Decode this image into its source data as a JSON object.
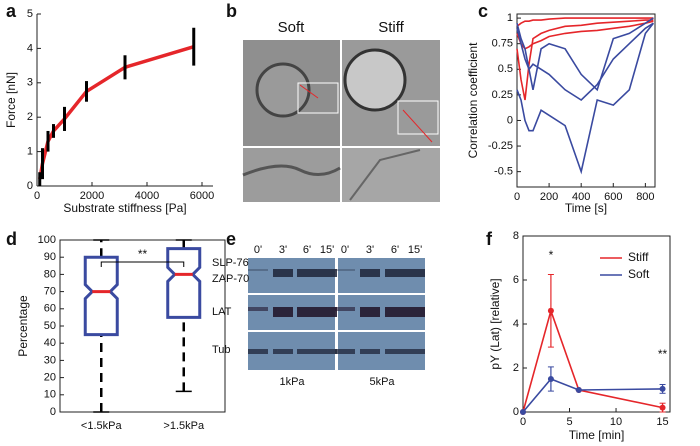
{
  "chart_data": [
    {
      "type": "line",
      "x_label": "Substrate stiffness [Pa]",
      "y_label": "Force [nN]",
      "x": [
        100,
        200,
        400,
        600,
        1000,
        1800,
        3200,
        5700
      ],
      "series": [
        {
          "color": "#e5262a",
          "values": [
            0.2,
            0.65,
            1.3,
            1.6,
            1.95,
            2.75,
            3.45,
            4.05
          ],
          "errors": [
            0.2,
            0.45,
            0.3,
            0.2,
            0.35,
            0.3,
            0.35,
            0.55
          ]
        }
      ],
      "xlim": [
        0,
        6400
      ],
      "ylim": [
        0,
        5
      ],
      "xticks": [
        0,
        2000,
        4000,
        6000
      ],
      "yticks": [
        0,
        1,
        2,
        3,
        4,
        5
      ]
    },
    {
      "type": "line",
      "x_label": "Time [s]",
      "y_label": "Correlation coefficient",
      "x": [
        0,
        25,
        50,
        75,
        100,
        150,
        200,
        300,
        400,
        500,
        600,
        700,
        800,
        850
      ],
      "series": [
        {
          "color": "#e5262a",
          "values": [
            0.92,
            0.95,
            0.97,
            0.97,
            0.98,
            0.98,
            0.99,
            1,
            1,
            1,
            1,
            1,
            1,
            1
          ]
        },
        {
          "color": "#e5262a",
          "values": [
            0.7,
            0.4,
            0.2,
            0.55,
            0.8,
            0.85,
            0.88,
            0.92,
            0.93,
            0.95,
            0.96,
            0.97,
            0.98,
            0.98
          ]
        },
        {
          "color": "#e5262a",
          "values": [
            0.85,
            0.75,
            0.7,
            0.72,
            0.75,
            0.78,
            0.82,
            0.85,
            0.87,
            0.88,
            0.9,
            0.92,
            0.95,
            0.97
          ]
        },
        {
          "color": "#3a4aa0",
          "values": [
            0.9,
            0.75,
            0.6,
            0.5,
            0.55,
            0.5,
            0.45,
            0.3,
            0.2,
            0.35,
            0.6,
            0.75,
            0.9,
            0.95
          ]
        },
        {
          "color": "#3a4aa0",
          "values": [
            0.3,
            0.2,
            0.0,
            -0.1,
            -0.1,
            0.1,
            0.05,
            -0.05,
            -0.5,
            0.2,
            0.15,
            0.3,
            0.85,
            0.95
          ]
        },
        {
          "color": "#3a4aa0",
          "values": [
            0.95,
            0.8,
            0.7,
            0.5,
            0.3,
            0.7,
            0.75,
            0.7,
            0.45,
            0.3,
            0.8,
            0.85,
            0.95,
            1
          ]
        }
      ],
      "xlim": [
        0,
        860
      ],
      "ylim": [
        -0.65,
        1.04
      ],
      "xticks": [
        0,
        200,
        400,
        600,
        800
      ],
      "yticks": [
        -0.5,
        -0.25,
        0,
        0.25,
        0.5,
        0.75,
        1
      ]
    },
    {
      "type": "box",
      "y_label": "Percentage",
      "categories": [
        "<1.5kPa",
        ">1.5kPa"
      ],
      "color": "#3a4aa0",
      "median_color": "#e5262a",
      "stats": [
        {
          "low": 0,
          "q1": 45,
          "median": 70,
          "q3": 90,
          "high": 100
        },
        {
          "low": 12,
          "q1": 55,
          "median": 80,
          "q3": 95,
          "high": 100
        }
      ],
      "annotations": [
        "**"
      ],
      "ylim": [
        0,
        100
      ],
      "yticks": [
        0,
        10,
        20,
        30,
        40,
        50,
        60,
        70,
        80,
        90,
        100
      ]
    },
    {
      "type": "line",
      "x_label": "Time [min]",
      "y_label": "pY (Lat) [relative]",
      "markers": true,
      "legend": "upper right",
      "x": [
        0,
        3,
        6,
        15
      ],
      "series": [
        {
          "name": "Stiff",
          "color": "#e5262a",
          "values": [
            0,
            4.6,
            1.0,
            0.2
          ],
          "errors": [
            0,
            1.65,
            0,
            0.2
          ]
        },
        {
          "name": "Soft",
          "color": "#3a4aa0",
          "values": [
            0,
            1.5,
            1.0,
            1.05
          ],
          "errors": [
            0,
            0.55,
            0,
            0.2
          ]
        }
      ],
      "annotations": [
        "*",
        "**"
      ],
      "xlim": [
        0,
        15.8
      ],
      "ylim": [
        0,
        8
      ],
      "xticks": [
        0,
        5,
        10,
        15
      ],
      "yticks": [
        0,
        2,
        4,
        6,
        8
      ]
    }
  ],
  "figure": {
    "panel_labels": [
      "a",
      "b",
      "c",
      "d",
      "e",
      "f"
    ],
    "b": {
      "labels": [
        "Soft",
        "Stiff"
      ]
    },
    "e": {
      "times": [
        "0'",
        "3'",
        "6'",
        "15'"
      ],
      "bands": [
        "SLP-76",
        "ZAP-70",
        "LAT",
        "Tub"
      ],
      "substrates": [
        "1kPa",
        "5kPa"
      ]
    }
  }
}
